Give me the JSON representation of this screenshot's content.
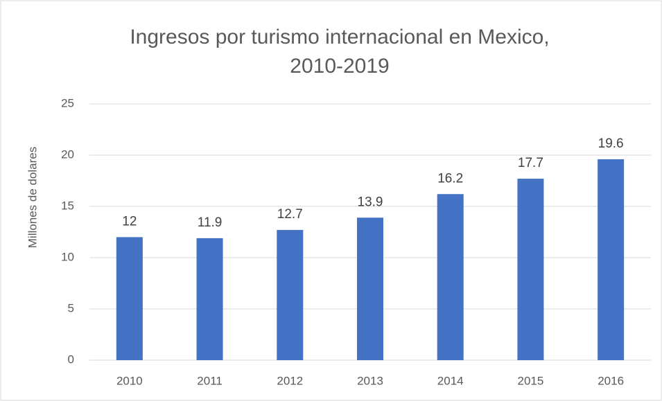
{
  "chart_data": {
    "type": "bar",
    "title": [
      "Ingresos por turismo internacional en Mexico,",
      "2010-2019"
    ],
    "y_label": "Millones de dolares",
    "categories": [
      "2010",
      "2011",
      "2012",
      "2013",
      "2014",
      "2015",
      "2016"
    ],
    "values": [
      12,
      11.9,
      12.7,
      13.9,
      16.2,
      17.7,
      19.6
    ],
    "color": "#4472c4",
    "ylim": [
      0,
      25
    ],
    "yticks": [
      0,
      5,
      10,
      15,
      20,
      25
    ],
    "grid": true,
    "data_labels": true
  }
}
